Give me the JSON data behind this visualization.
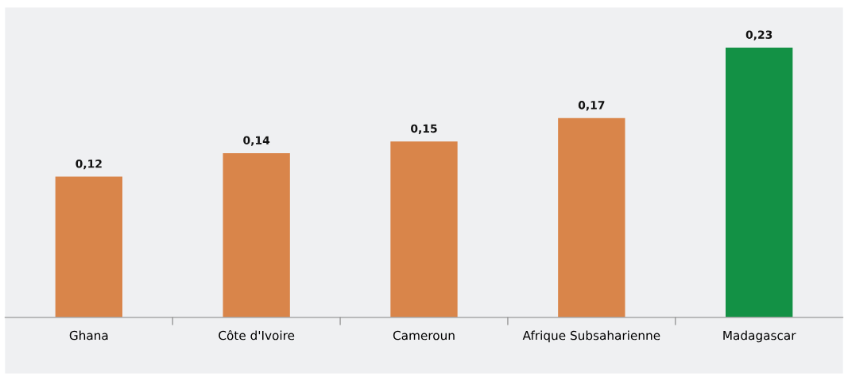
{
  "chart_data": {
    "type": "bar",
    "categories": [
      "Ghana",
      "Côte d'Ivoire",
      "Cameroun",
      "Afrique Subsaharienne",
      "Madagascar"
    ],
    "values": [
      0.12,
      0.14,
      0.15,
      0.17,
      0.23
    ],
    "colors": [
      "#d9854a",
      "#d9854a",
      "#d9854a",
      "#d9854a",
      "#139145"
    ],
    "value_labels": [
      "0,12",
      "0,14",
      "0,15",
      "0,17",
      "0,23"
    ],
    "grid": false,
    "legend": false
  }
}
